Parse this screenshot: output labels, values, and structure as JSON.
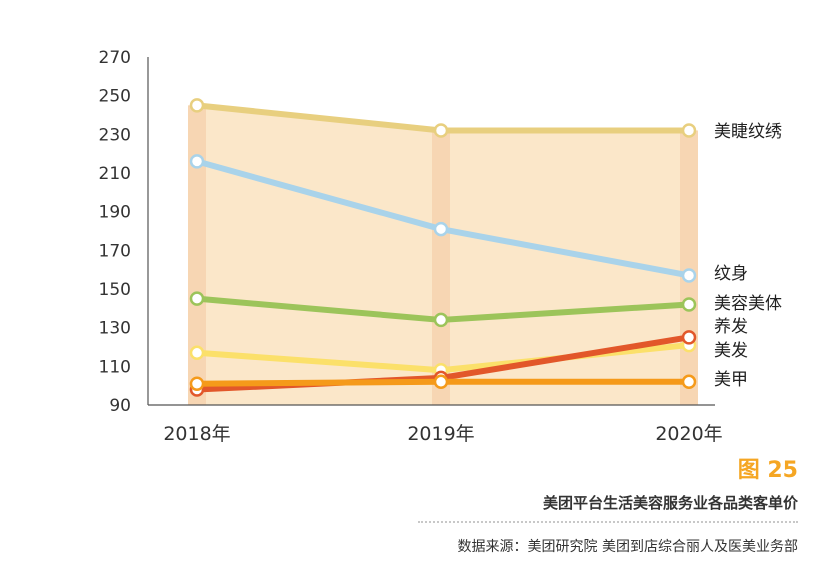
{
  "chart_data": {
    "type": "line",
    "x": [
      "2018年",
      "2019年",
      "2020年"
    ],
    "ylim": [
      90,
      270
    ],
    "yticks": [
      90,
      110,
      130,
      150,
      170,
      190,
      210,
      230,
      250,
      270
    ],
    "series": [
      {
        "name": "美睫纹绣",
        "values": [
          245,
          232,
          232
        ],
        "color": "#e8cf7f"
      },
      {
        "name": "纹身",
        "values": [
          216,
          181,
          157
        ],
        "color": "#a9d3ea"
      },
      {
        "name": "美容美体",
        "values": [
          145,
          134,
          142
        ],
        "color": "#9cc45a"
      },
      {
        "name": "养发",
        "values": [
          98,
          104,
          125
        ],
        "color": "#e2572a"
      },
      {
        "name": "美发",
        "values": [
          117,
          108,
          121
        ],
        "color": "#fbe06a"
      },
      {
        "name": "美甲",
        "values": [
          101,
          102,
          102
        ],
        "color": "#f59a1a"
      }
    ],
    "band_fill": "#fbe7c9",
    "column_fill": "#f7d6b3"
  },
  "figure": {
    "number": "图 25",
    "title": "美团平台生活美容服务业各品类客单价",
    "source": "数据来源：美团研究院  美团到店综合丽人及医美业务部"
  }
}
